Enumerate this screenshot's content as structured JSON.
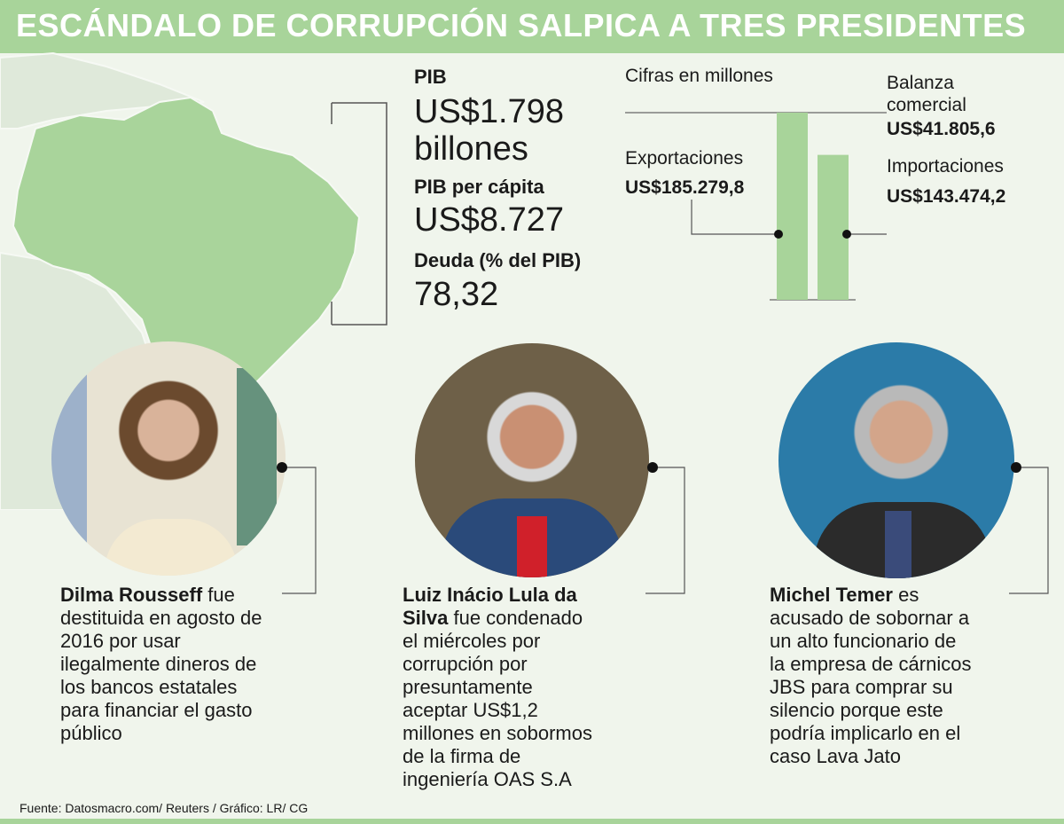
{
  "title": "ESCÁNDALO DE CORRUPCIÓN SALPICA A TRES PRESIDENTES",
  "stats": {
    "pib_label": "PIB",
    "pib_value_line1": "US$1.798",
    "pib_value_line2": "billones",
    "pib_pc_label": "PIB per cápita",
    "pib_pc_value": "US$8.727",
    "deuda_label": "Deuda (% del PIB)",
    "deuda_value": "78,32"
  },
  "chart_data": {
    "type": "bar",
    "title": "Cifras en millones",
    "categories": [
      "Exportaciones",
      "Importaciones"
    ],
    "values": [
      185279.8,
      143474.2
    ],
    "value_labels": [
      "US$185.279,8",
      "US$143.474,2"
    ],
    "balance_label_line1": "Balanza",
    "balance_label_line2": "comercial",
    "balance_value": 41805.6,
    "balance_value_label": "US$41.805,6",
    "colors": {
      "bar": "#a8d49a"
    }
  },
  "presidents": [
    {
      "name": "Dilma Rousseff",
      "text_lines": [
        " fue",
        "destituida en agosto de",
        "2016 por usar",
        "ilegalmente dineros de",
        "los bancos estatales",
        "para financiar el gasto",
        "público"
      ]
    },
    {
      "name_line1": "Luiz Inácio Lula da",
      "name_line2": "Silva",
      "text_lines": [
        " fue condenado",
        "el miércoles por",
        "corrupción por",
        "presuntamente",
        "aceptar US$1,2",
        "millones en sobormos",
        "de la firma de",
        "ingeniería OAS S.A"
      ]
    },
    {
      "name": "Michel Temer",
      "text_lines": [
        " es",
        "acusado de sobornar a",
        "un alto funcionario de",
        "la empresa de cárnicos",
        "JBS para comprar su",
        "silencio porque este",
        "podría implicarlo en el",
        "caso Lava Jato"
      ]
    }
  ],
  "source": "Fuente: Datosmacro.com/ Reuters / Gráfico: LR/ CG",
  "colors": {
    "accent": "#a8d49a",
    "map_fill": "#a9d49b",
    "map_bg": "#e8f0e3"
  }
}
